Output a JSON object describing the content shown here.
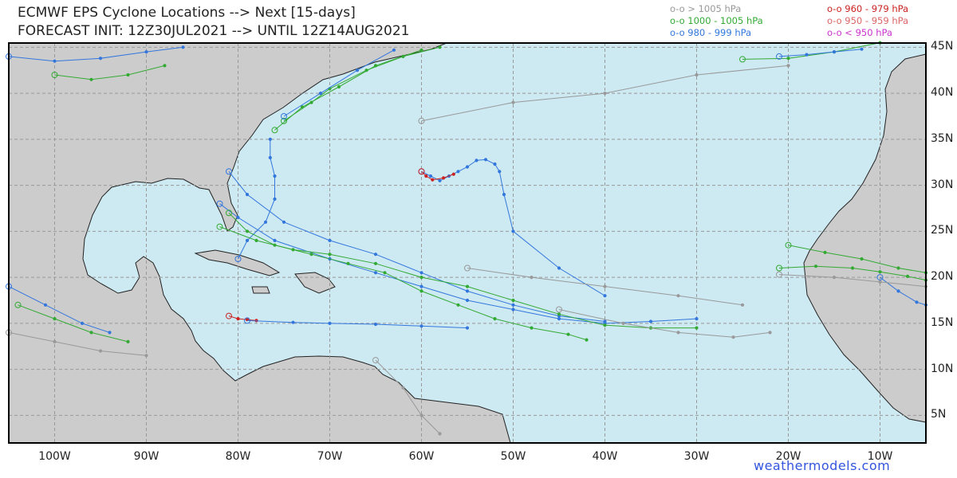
{
  "title_line1": "ECMWF EPS Cyclone Locations --> Next [15-days]",
  "title_line2": "FORECAST INIT: 12Z30JUL2021 --> UNTIL 12Z14AUG2021",
  "legend": [
    {
      "text": "o-o > 1005 hPa",
      "color": "#999999"
    },
    {
      "text": "o-o 1000 - 1005 hPa",
      "color": "#33aa33"
    },
    {
      "text": "o-o 980 - 999 hPa",
      "color": "#3377dd"
    },
    {
      "text": "o-o 960 - 979 hPa",
      "color": "#cc2222"
    },
    {
      "text": "o-o 950 - 959 hPa",
      "color": "#dd6666"
    },
    {
      "text": "o-o < 950 hPa",
      "color": "#cc33cc"
    }
  ],
  "lon_labels": [
    "100W",
    "90W",
    "80W",
    "70W",
    "60W",
    "50W",
    "40W",
    "30W",
    "20W",
    "10W"
  ],
  "lat_labels": [
    "45N",
    "40N",
    "35N",
    "30N",
    "25N",
    "20N",
    "15N",
    "10N",
    "5N"
  ],
  "brand": "weathermodels.com",
  "colors": {
    "ocean": "#cde9f2",
    "land": "#cccccc",
    "grid": "#999999"
  },
  "tracks": [
    {
      "color": "#3377dd",
      "pts": [
        [
          -60,
          31.5
        ],
        [
          -59,
          31
        ],
        [
          -58,
          30.5
        ],
        [
          -57,
          31
        ],
        [
          -56,
          31.5
        ],
        [
          -55,
          32
        ],
        [
          -54,
          32.7
        ],
        [
          -53,
          32.8
        ],
        [
          -52,
          32.3
        ],
        [
          -51.5,
          31.5
        ],
        [
          -51,
          29
        ],
        [
          -50,
          25
        ],
        [
          -45,
          21
        ],
        [
          -40,
          18
        ]
      ]
    },
    {
      "color": "#cc2222",
      "pts": [
        [
          -60,
          31.5
        ],
        [
          -59.5,
          31
        ],
        [
          -58.8,
          30.6
        ],
        [
          -57.6,
          30.8
        ],
        [
          -56.5,
          31.2
        ]
      ]
    },
    {
      "color": "#cc2222",
      "pts": [
        [
          -81,
          15.8
        ],
        [
          -80,
          15.5
        ],
        [
          -79,
          15.4
        ],
        [
          -78,
          15.3
        ]
      ]
    },
    {
      "color": "#3377dd",
      "pts": [
        [
          -79,
          15.3
        ],
        [
          -74,
          15.1
        ],
        [
          -70,
          15.0
        ],
        [
          -65,
          14.9
        ],
        [
          -60,
          14.7
        ],
        [
          -55,
          14.5
        ]
      ]
    },
    {
      "color": "#3377dd",
      "pts": [
        [
          -80,
          22
        ],
        [
          -79,
          24
        ],
        [
          -77,
          26
        ],
        [
          -76,
          28.5
        ],
        [
          -76,
          31
        ],
        [
          -76.5,
          33
        ],
        [
          -76.5,
          35
        ]
      ]
    },
    {
      "color": "#3377dd",
      "pts": [
        [
          -82,
          28
        ],
        [
          -80,
          26.5
        ],
        [
          -76,
          24
        ],
        [
          -70,
          22
        ],
        [
          -65,
          20.5
        ],
        [
          -60,
          19
        ],
        [
          -55,
          17.5
        ],
        [
          -50,
          16.5
        ],
        [
          -45,
          15.5
        ],
        [
          -40,
          15
        ],
        [
          -35,
          15.2
        ],
        [
          -30,
          15.5
        ]
      ]
    },
    {
      "color": "#3377dd",
      "pts": [
        [
          -81,
          31.5
        ],
        [
          -79,
          29
        ],
        [
          -75,
          26
        ],
        [
          -70,
          24
        ],
        [
          -65,
          22.5
        ],
        [
          -60,
          20.5
        ],
        [
          -55,
          18.5
        ],
        [
          -50,
          17
        ],
        [
          -45,
          15.8
        ],
        [
          -40,
          15.2
        ]
      ]
    },
    {
      "color": "#33aa33",
      "pts": [
        [
          -82,
          25.5
        ],
        [
          -78,
          24
        ],
        [
          -74,
          23
        ],
        [
          -70,
          22.5
        ],
        [
          -65,
          21.5
        ],
        [
          -60,
          20
        ],
        [
          -55,
          19
        ],
        [
          -50,
          17.5
        ],
        [
          -45,
          16
        ],
        [
          -40,
          14.8
        ],
        [
          -35,
          14.5
        ],
        [
          -30,
          14.5
        ]
      ]
    },
    {
      "color": "#33aa33",
      "pts": [
        [
          -81,
          27
        ],
        [
          -79,
          25
        ],
        [
          -76,
          23.5
        ],
        [
          -72,
          22.5
        ],
        [
          -68,
          21.5
        ],
        [
          -64,
          20.5
        ],
        [
          -60,
          18.5
        ],
        [
          -56,
          17
        ],
        [
          -52,
          15.5
        ],
        [
          -48,
          14.5
        ],
        [
          -44,
          13.8
        ],
        [
          -42,
          13.2
        ]
      ]
    },
    {
      "color": "#33aa33",
      "pts": [
        [
          -75,
          37
        ],
        [
          -72,
          39
        ],
        [
          -70,
          40.5
        ],
        [
          -66,
          42.5
        ],
        [
          -62,
          44
        ],
        [
          -58,
          45
        ]
      ]
    },
    {
      "color": "#33aa33",
      "pts": [
        [
          -76,
          36
        ],
        [
          -73,
          38.5
        ],
        [
          -69,
          40.7
        ],
        [
          -65,
          43
        ],
        [
          -60,
          44.7
        ]
      ]
    },
    {
      "color": "#3377dd",
      "pts": [
        [
          -75,
          37.5
        ],
        [
          -71,
          40
        ],
        [
          -67,
          42.5
        ],
        [
          -63,
          44.7
        ]
      ]
    },
    {
      "color": "#33aa33",
      "pts": [
        [
          -21,
          21
        ],
        [
          -17,
          21.2
        ],
        [
          -13,
          21
        ],
        [
          -10,
          20.6
        ],
        [
          -7,
          20.1
        ],
        [
          -5,
          19.7
        ]
      ]
    },
    {
      "color": "#33aa33",
      "pts": [
        [
          -20,
          23.5
        ],
        [
          -16,
          22.7
        ],
        [
          -12,
          22
        ],
        [
          -8,
          21
        ],
        [
          -5,
          20.5
        ]
      ]
    },
    {
      "color": "#3377dd",
      "pts": [
        [
          -10,
          20
        ],
        [
          -8,
          18.5
        ],
        [
          -6,
          17.3
        ],
        [
          -5,
          17
        ]
      ]
    },
    {
      "color": "#999999",
      "pts": [
        [
          -21,
          20.3
        ],
        [
          -15,
          20
        ],
        [
          -10,
          19.5
        ],
        [
          -5,
          19
        ]
      ]
    },
    {
      "color": "#33aa33",
      "pts": [
        [
          -25,
          43.7
        ],
        [
          -20,
          43.8
        ],
        [
          -15,
          44.5
        ],
        [
          -10,
          45.5
        ]
      ]
    },
    {
      "color": "#3377dd",
      "pts": [
        [
          -21,
          44
        ],
        [
          -18,
          44.2
        ],
        [
          -15,
          44.5
        ],
        [
          -12,
          44.8
        ]
      ]
    },
    {
      "color": "#999999",
      "pts": [
        [
          -60,
          37
        ],
        [
          -50,
          39
        ],
        [
          -40,
          40
        ],
        [
          -30,
          42
        ],
        [
          -20,
          43
        ]
      ]
    },
    {
      "color": "#999999",
      "pts": [
        [
          -55,
          21
        ],
        [
          -48,
          20
        ],
        [
          -40,
          19
        ],
        [
          -32,
          18
        ],
        [
          -25,
          17
        ]
      ]
    },
    {
      "color": "#999999",
      "pts": [
        [
          -45,
          16.5
        ],
        [
          -38,
          15
        ],
        [
          -32,
          14
        ],
        [
          -26,
          13.5
        ],
        [
          -22,
          14
        ]
      ]
    },
    {
      "color": "#999999",
      "pts": [
        [
          -65,
          11
        ],
        [
          -62,
          8
        ],
        [
          -60,
          5
        ],
        [
          -58,
          3
        ]
      ]
    },
    {
      "color": "#3377dd",
      "pts": [
        [
          -105,
          19
        ],
        [
          -101,
          17
        ],
        [
          -97,
          15
        ],
        [
          -94,
          14
        ]
      ]
    },
    {
      "color": "#33aa33",
      "pts": [
        [
          -104,
          17
        ],
        [
          -100,
          15.5
        ],
        [
          -96,
          14
        ],
        [
          -92,
          13
        ]
      ]
    },
    {
      "color": "#999999",
      "pts": [
        [
          -105,
          14
        ],
        [
          -100,
          13
        ],
        [
          -95,
          12
        ],
        [
          -90,
          11.5
        ]
      ]
    },
    {
      "color": "#3377dd",
      "pts": [
        [
          -105,
          44
        ],
        [
          -100,
          43.5
        ],
        [
          -95,
          43.8
        ],
        [
          -90,
          44.5
        ],
        [
          -86,
          45
        ]
      ]
    },
    {
      "color": "#33aa33",
      "pts": [
        [
          -100,
          42
        ],
        [
          -96,
          41.5
        ],
        [
          -92,
          42
        ],
        [
          -88,
          43
        ]
      ]
    }
  ]
}
